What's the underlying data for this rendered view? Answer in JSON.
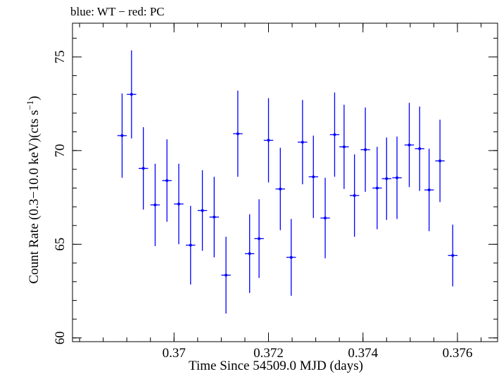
{
  "chart_data": {
    "type": "scatter",
    "title": "blue: WT − red: PC",
    "xlabel": "Time Since 54509.0 MJD (days)",
    "ylabel_main": "Count Rate (0.3−10.0 keV)(cts s",
    "ylabel_sup": "−1",
    "ylabel_close": ")",
    "xlim": [
      0.36785,
      0.37685
    ],
    "ylim": [
      59.8,
      76.8
    ],
    "xticks": [
      {
        "value": 0.37,
        "label": "0.37"
      },
      {
        "value": 0.372,
        "label": "0.372"
      },
      {
        "value": 0.374,
        "label": "0.374"
      },
      {
        "value": 0.376,
        "label": "0.376"
      }
    ],
    "yticks": [
      {
        "value": 60,
        "label": "60"
      },
      {
        "value": 65,
        "label": "65"
      },
      {
        "value": 70,
        "label": "70"
      },
      {
        "value": 75,
        "label": "75"
      }
    ],
    "x_minor_step": 0.0005,
    "y_minor_step": 1,
    "series": [
      {
        "color": "#0000ff",
        "x_halfwidth": 0.0001,
        "points": [
          {
            "x": 0.3689,
            "y": 70.8,
            "yerr": 2.25
          },
          {
            "x": 0.3691,
            "y": 73.0,
            "yerr": 2.35
          },
          {
            "x": 0.36935,
            "y": 69.05,
            "yerr": 2.2
          },
          {
            "x": 0.3696,
            "y": 67.1,
            "yerr": 2.2
          },
          {
            "x": 0.36985,
            "y": 68.4,
            "yerr": 2.2
          },
          {
            "x": 0.3701,
            "y": 67.15,
            "yerr": 2.15
          },
          {
            "x": 0.37035,
            "y": 64.95,
            "yerr": 2.1
          },
          {
            "x": 0.3706,
            "y": 66.8,
            "yerr": 2.15
          },
          {
            "x": 0.37085,
            "y": 66.45,
            "yerr": 2.15
          },
          {
            "x": 0.3711,
            "y": 63.35,
            "yerr": 2.05
          },
          {
            "x": 0.37135,
            "y": 70.9,
            "yerr": 2.3
          },
          {
            "x": 0.3716,
            "y": 64.5,
            "yerr": 2.1
          },
          {
            "x": 0.3718,
            "y": 65.3,
            "yerr": 2.1
          },
          {
            "x": 0.372,
            "y": 70.55,
            "yerr": 2.25
          },
          {
            "x": 0.37225,
            "y": 67.95,
            "yerr": 2.2
          },
          {
            "x": 0.37248,
            "y": 64.3,
            "yerr": 2.05
          },
          {
            "x": 0.37272,
            "y": 70.45,
            "yerr": 2.25
          },
          {
            "x": 0.37295,
            "y": 68.6,
            "yerr": 2.2
          },
          {
            "x": 0.3732,
            "y": 66.4,
            "yerr": 2.15
          },
          {
            "x": 0.3734,
            "y": 70.85,
            "yerr": 2.25
          },
          {
            "x": 0.3736,
            "y": 70.2,
            "yerr": 2.25
          },
          {
            "x": 0.37382,
            "y": 67.6,
            "yerr": 2.2
          },
          {
            "x": 0.37405,
            "y": 70.05,
            "yerr": 2.25
          },
          {
            "x": 0.3743,
            "y": 68.0,
            "yerr": 2.2
          },
          {
            "x": 0.3745,
            "y": 68.5,
            "yerr": 2.2
          },
          {
            "x": 0.37472,
            "y": 68.55,
            "yerr": 2.2
          },
          {
            "x": 0.37498,
            "y": 70.3,
            "yerr": 2.25
          },
          {
            "x": 0.3752,
            "y": 70.1,
            "yerr": 2.25
          },
          {
            "x": 0.3754,
            "y": 67.9,
            "yerr": 2.2
          },
          {
            "x": 0.37563,
            "y": 69.45,
            "yerr": 2.2
          },
          {
            "x": 0.3759,
            "y": 64.4,
            "yerr": 1.65
          }
        ]
      }
    ]
  }
}
